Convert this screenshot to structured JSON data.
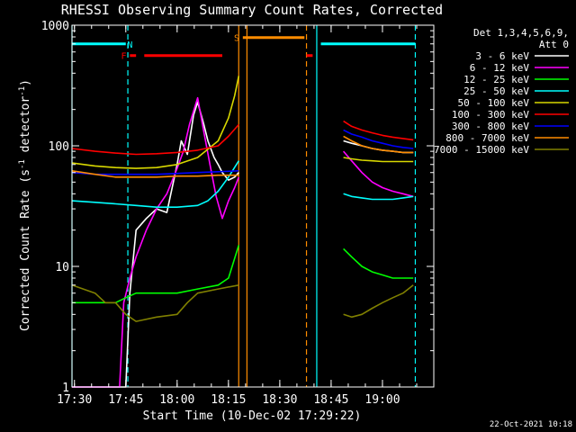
{
  "chart_data": {
    "type": "line",
    "title": "RHESSI Observing Summary Count Rates, Corrected",
    "xlabel": "Start Time (10-Dec-02 17:29:22)",
    "ylabel_main": "Corrected Count Rate (s",
    "ylabel_sup1": "-1",
    "ylabel_mid": " detector",
    "ylabel_sup2": "-1",
    "ylabel_end": ")",
    "yscale": "log",
    "ylim": [
      1,
      1000
    ],
    "xlim": [
      17.488,
      19.25
    ],
    "grid": false,
    "x_ticks": [
      {
        "x": 17.5,
        "label": "17:30"
      },
      {
        "x": 17.75,
        "label": "17:45"
      },
      {
        "x": 18.0,
        "label": "18:00"
      },
      {
        "x": 18.25,
        "label": "18:15"
      },
      {
        "x": 18.5,
        "label": "18:30"
      },
      {
        "x": 18.75,
        "label": "18:45"
      },
      {
        "x": 19.0,
        "label": "19:00"
      }
    ],
    "y_ticks": [
      {
        "y": 1,
        "label": "1"
      },
      {
        "y": 10,
        "label": "10"
      },
      {
        "y": 100,
        "label": "100"
      },
      {
        "y": 1000,
        "label": "1000"
      }
    ],
    "legend_position": "right",
    "legend_header": [
      "Det 1,3,4,5,6,9,",
      "Att 0"
    ],
    "series": [
      {
        "name": "3 - 6 keV",
        "color": "#ffffff",
        "segments": [
          {
            "x": [
              17.488,
              17.62,
              17.75,
              17.77,
              17.8,
              17.85,
              17.9,
              17.95,
              18.0,
              18.02,
              18.05,
              18.08,
              18.1,
              18.13,
              18.15,
              18.18,
              18.2,
              18.22,
              18.25,
              18.28,
              18.3
            ],
            "y": [
              1,
              1,
              1,
              6,
              20,
              25,
              30,
              28,
              70,
              110,
              85,
              180,
              230,
              150,
              110,
              80,
              70,
              60,
              52,
              55,
              60
            ]
          },
          {
            "x": [
              18.81,
              18.85,
              18.9,
              18.95,
              19.0,
              19.05,
              19.1,
              19.15
            ],
            "y": [
              110,
              105,
              100,
              95,
              92,
              90,
              88,
              88
            ]
          }
        ]
      },
      {
        "name": "6 - 12 keV",
        "color": "#ff00ff",
        "segments": [
          {
            "x": [
              17.488,
              17.62,
              17.72,
              17.74,
              17.77,
              17.8,
              17.85,
              17.9,
              17.95,
              18.0,
              18.03,
              18.06,
              18.1,
              18.13,
              18.16,
              18.19,
              18.22,
              18.25,
              18.28,
              18.3
            ],
            "y": [
              1,
              1,
              1,
              5,
              8,
              12,
              20,
              30,
              40,
              65,
              90,
              150,
              250,
              130,
              70,
              38,
              25,
              35,
              45,
              55
            ]
          },
          {
            "x": [
              18.81,
              18.85,
              18.9,
              18.95,
              19.0,
              19.05,
              19.1,
              19.15
            ],
            "y": [
              90,
              75,
              60,
              50,
              45,
              42,
              40,
              38
            ]
          }
        ]
      },
      {
        "name": "12 - 25 keV",
        "color": "#00ff00",
        "segments": [
          {
            "x": [
              17.488,
              17.6,
              17.7,
              17.75,
              17.8,
              17.9,
              18.0,
              18.1,
              18.2,
              18.25,
              18.3
            ],
            "y": [
              5,
              5,
              5,
              5.5,
              6,
              6,
              6,
              6.5,
              7,
              8,
              15
            ]
          },
          {
            "x": [
              18.81,
              18.85,
              18.9,
              18.95,
              19.0,
              19.05,
              19.1,
              19.15
            ],
            "y": [
              14,
              12,
              10,
              9,
              8.5,
              8,
              8,
              8
            ]
          }
        ]
      },
      {
        "name": "25 - 50 keV",
        "color": "#00ffff",
        "segments": [
          {
            "x": [
              17.488,
              17.6,
              17.7,
              17.8,
              17.9,
              18.0,
              18.1,
              18.15,
              18.2,
              18.25,
              18.3
            ],
            "y": [
              35,
              34,
              33,
              32,
              31,
              31,
              32,
              35,
              42,
              55,
              75
            ]
          },
          {
            "x": [
              18.81,
              18.85,
              18.9,
              18.95,
              19.0,
              19.05,
              19.1,
              19.15
            ],
            "y": [
              40,
              38,
              37,
              36,
              36,
              36,
              37,
              38
            ]
          }
        ]
      },
      {
        "name": "50 - 100 keV",
        "color": "#d8d800",
        "segments": [
          {
            "x": [
              17.488,
              17.6,
              17.7,
              17.8,
              17.9,
              18.0,
              18.1,
              18.2,
              18.25,
              18.28,
              18.3
            ],
            "y": [
              72,
              68,
              66,
              65,
              66,
              70,
              80,
              110,
              170,
              260,
              380
            ]
          },
          {
            "x": [
              18.81,
              18.85,
              18.9,
              18.95,
              19.0,
              19.05,
              19.1,
              19.15
            ],
            "y": [
              80,
              78,
              76,
              75,
              74,
              74,
              74,
              74
            ]
          }
        ]
      },
      {
        "name": "100 - 300 keV",
        "color": "#ff0000",
        "segments": [
          {
            "x": [
              17.488,
              17.6,
              17.7,
              17.8,
              17.9,
              18.0,
              18.1,
              18.2,
              18.25,
              18.3
            ],
            "y": [
              95,
              90,
              87,
              85,
              86,
              88,
              92,
              100,
              120,
              150
            ]
          },
          {
            "x": [
              18.81,
              18.85,
              18.9,
              18.95,
              19.0,
              19.05,
              19.1,
              19.15
            ],
            "y": [
              160,
              145,
              135,
              128,
              122,
              118,
              115,
              112
            ]
          }
        ]
      },
      {
        "name": "300 - 800 keV",
        "color": "#0000ff",
        "segments": [
          {
            "x": [
              17.488,
              17.6,
              17.7,
              17.8,
              17.9,
              18.0,
              18.1,
              18.2,
              18.3
            ],
            "y": [
              60,
              58,
              58,
              58,
              58,
              59,
              60,
              61,
              62
            ]
          },
          {
            "x": [
              18.81,
              18.85,
              18.9,
              18.95,
              19.0,
              19.05,
              19.1,
              19.15
            ],
            "y": [
              135,
              125,
              118,
              110,
              105,
              100,
              97,
              95
            ]
          }
        ]
      },
      {
        "name": "800 - 7000 keV",
        "color": "#ff8c00",
        "segments": [
          {
            "x": [
              17.488,
              17.6,
              17.7,
              17.8,
              17.9,
              18.0,
              18.1,
              18.2,
              18.3
            ],
            "y": [
              62,
              58,
              55,
              55,
              55,
              56,
              56,
              57,
              57
            ]
          },
          {
            "x": [
              18.81,
              18.85,
              18.9,
              18.95,
              19.0,
              19.05,
              19.1,
              19.15
            ],
            "y": [
              120,
              110,
              100,
              95,
              92,
              90,
              88,
              88
            ]
          }
        ]
      },
      {
        "name": "7000 - 15000 keV",
        "color": "#808000",
        "segments": [
          {
            "x": [
              17.488,
              17.6,
              17.65,
              17.7,
              17.75,
              17.8,
              17.9,
              18.0,
              18.05,
              18.1,
              18.2,
              18.3
            ],
            "y": [
              7,
              6,
              5,
              5,
              4,
              3.5,
              3.8,
              4,
              5,
              6,
              6.5,
              7
            ]
          },
          {
            "x": [
              18.81,
              18.85,
              18.9,
              18.95,
              19.0,
              19.05,
              19.1,
              19.15
            ],
            "y": [
              4,
              3.8,
              4,
              4.5,
              5,
              5.5,
              6,
              7
            ]
          }
        ]
      }
    ],
    "flag_bars": [
      {
        "label": "",
        "color": "#00ffff",
        "x_start": 17.488,
        "x_end": 17.75,
        "y": 700
      },
      {
        "label": "N",
        "color": "#00ffff",
        "x": 17.77,
        "y": 700
      },
      {
        "label": "F",
        "color": "#ff0000",
        "x": 17.74,
        "y": 560
      },
      {
        "label": "",
        "color": "#ff0000",
        "x_start": 17.77,
        "x_end": 17.8,
        "y": 560
      },
      {
        "label": "",
        "color": "#ff0000",
        "x_start": 17.84,
        "x_end": 18.22,
        "y": 560
      },
      {
        "label": "S",
        "color": "#ff8c00",
        "x": 18.29,
        "y": 790
      },
      {
        "label": "",
        "color": "#ff8c00",
        "x_start": 18.32,
        "x_end": 18.62,
        "y": 790
      },
      {
        "label": "",
        "color": "#ff0000",
        "x_start": 18.63,
        "x_end": 18.66,
        "y": 560
      },
      {
        "label": "",
        "color": "#00ffff",
        "x_start": 18.7,
        "x_end": 19.16,
        "y": 700
      }
    ],
    "vertical_markers": [
      {
        "x": 17.488,
        "color": "#00ffff",
        "style": "solid"
      },
      {
        "x": 17.76,
        "color": "#00ffff",
        "style": "dashed"
      },
      {
        "x": 18.3,
        "color": "#ff8c00",
        "style": "solid"
      },
      {
        "x": 18.34,
        "color": "#ff8c00",
        "style": "solid"
      },
      {
        "x": 18.63,
        "color": "#ff8c00",
        "style": "dashed"
      },
      {
        "x": 18.68,
        "color": "#00ffff",
        "style": "solid"
      },
      {
        "x": 19.16,
        "color": "#00ffff",
        "style": "dashed"
      }
    ],
    "footer_date": "22-Oct-2021 10:18"
  }
}
